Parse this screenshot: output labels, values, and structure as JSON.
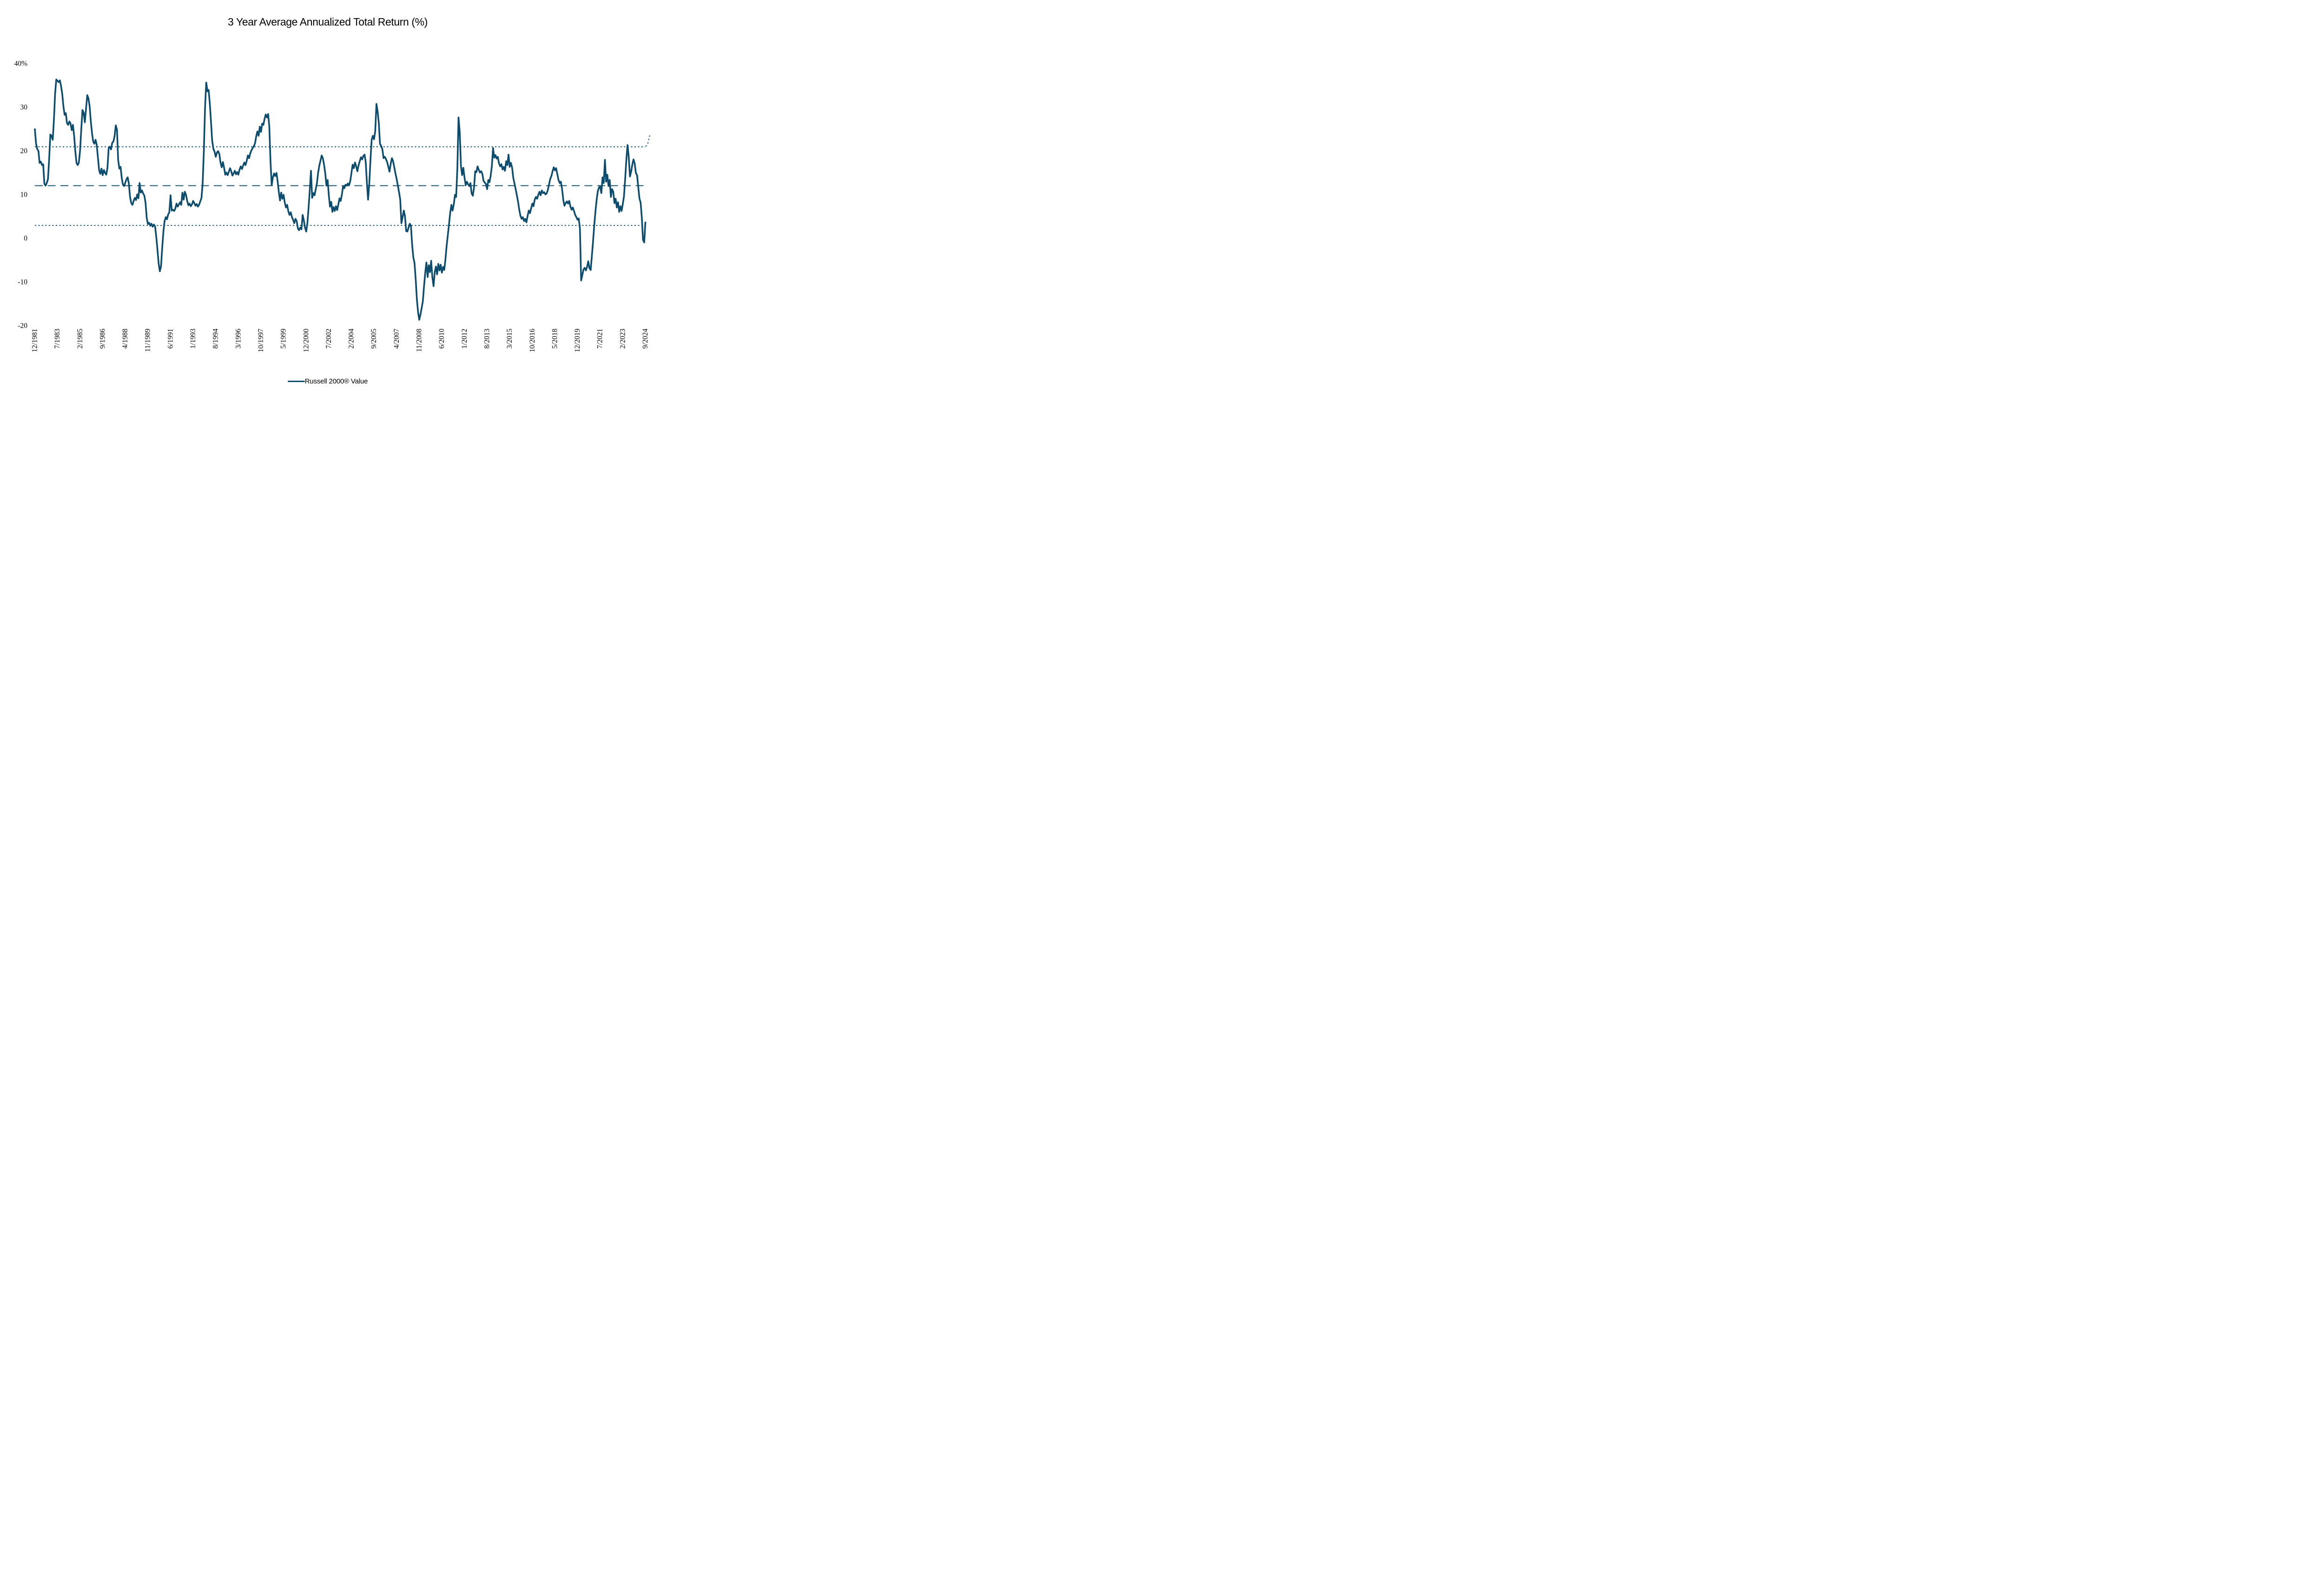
{
  "title": "3 Year Average Annualized Total Return (%)",
  "legend": {
    "label": "Russell 2000® Value"
  },
  "colors": {
    "line": "#0E4C6E",
    "text": "#000000",
    "background": "#FFFFFF"
  },
  "chart_data": {
    "type": "line",
    "title": "3 Year Average Annualized Total Return (%)",
    "xlabel": "",
    "ylabel": "",
    "ylim": [
      -20,
      40
    ],
    "grid": "off",
    "legend_position": "bottom-center",
    "y_ticks": [
      "40%",
      "30",
      "20",
      "10",
      "0",
      "-10",
      "-20"
    ],
    "y_tick_values": [
      40,
      30,
      20,
      10,
      0,
      -10,
      -20
    ],
    "x_tick_labels": [
      "12/1981",
      "7/1983",
      "2/1985",
      "9/1986",
      "4/1988",
      "11/1989",
      "6/1991",
      "1/1993",
      "8/1994",
      "3/1996",
      "10/1997",
      "5/1999",
      "12/2000",
      "7/2002",
      "2/2004",
      "9/2005",
      "4/2007",
      "11/2008",
      "6/2010",
      "1/2012",
      "8/2013",
      "3/2015",
      "10/2016",
      "5/2018",
      "12/2019",
      "7/2021",
      "2/2023",
      "9/2024"
    ],
    "x_tick_step_months": 19,
    "reference_lines": {
      "average": 12.0,
      "plus_one_std": 20.9,
      "minus_one_std": 2.9
    },
    "top_dotted_end_upturn": [
      [
        513.4,
        21.0
      ],
      [
        514.6,
        21.3
      ],
      [
        515.5,
        22.1
      ],
      [
        516.3,
        23.0
      ],
      [
        516.9,
        23.8
      ]
    ],
    "series": [
      {
        "name": "Russell 2000® Value",
        "start": "12/1981",
        "end": "9/2024",
        "frequency": "monthly",
        "values": [
          24.9,
          21.6,
          20.4,
          19.9,
          17.2,
          17.5,
          16.7,
          16.9,
          12.4,
          12.0,
          12.6,
          13.5,
          18.0,
          23.7,
          23.4,
          22.5,
          27.0,
          33.0,
          36.3,
          36.0,
          35.7,
          36.1,
          34.8,
          33.0,
          30.1,
          28.2,
          28.6,
          26.3,
          25.9,
          26.7,
          26.2,
          24.7,
          25.9,
          23.4,
          19.8,
          17.2,
          16.7,
          17.3,
          20.1,
          25.0,
          29.3,
          28.7,
          26.5,
          29.6,
          32.7,
          32.0,
          30.2,
          26.8,
          24.1,
          22.1,
          21.6,
          22.5,
          21.3,
          18.4,
          15.5,
          14.7,
          15.9,
          14.4,
          15.6,
          14.9,
          14.5,
          16.1,
          20.6,
          20.9,
          20.3,
          21.8,
          22.1,
          23.4,
          25.8,
          24.8,
          17.9,
          15.9,
          16.3,
          13.8,
          12.2,
          11.9,
          12.7,
          13.5,
          13.9,
          12.4,
          9.4,
          8.0,
          7.6,
          8.5,
          9.2,
          8.7,
          10.0,
          9.1,
          12.6,
          10.4,
          10.9,
          10.2,
          9.7,
          8.1,
          4.6,
          3.2,
          3.5,
          2.8,
          3.3,
          2.6,
          3.1,
          2.7,
          0.3,
          -2.6,
          -5.8,
          -7.6,
          -6.5,
          -2.2,
          1.4,
          3.9,
          4.8,
          4.3,
          5.4,
          5.9,
          9.8,
          6.3,
          6.5,
          6.2,
          6.7,
          7.9,
          7.2,
          7.7,
          8.2,
          7.6,
          10.4,
          8.8,
          10.6,
          9.9,
          8.5,
          7.5,
          7.9,
          7.3,
          7.7,
          8.5,
          8.0,
          7.4,
          7.8,
          7.2,
          7.6,
          8.4,
          9.2,
          12.5,
          20.0,
          30.0,
          35.6,
          33.6,
          33.9,
          30.8,
          26.5,
          22.3,
          20.4,
          19.8,
          18.6,
          19.6,
          19.9,
          19.2,
          17.3,
          16.2,
          17.4,
          16.1,
          14.5,
          15.0,
          14.4,
          15.2,
          16.0,
          15.3,
          14.3,
          14.8,
          15.4,
          14.6,
          15.1,
          14.5,
          15.7,
          16.4,
          15.8,
          16.6,
          17.3,
          16.7,
          17.7,
          18.9,
          18.3,
          19.4,
          20.1,
          20.6,
          21.0,
          21.7,
          23.3,
          24.4,
          23.4,
          25.5,
          24.3,
          26.2,
          25.9,
          27.3,
          28.3,
          27.6,
          28.4,
          25.5,
          17.5,
          12.1,
          13.9,
          14.8,
          14.2,
          14.9,
          13.0,
          10.5,
          8.6,
          10.4,
          9.0,
          9.9,
          8.1,
          7.0,
          7.6,
          6.1,
          5.3,
          5.9,
          4.8,
          4.2,
          3.4,
          4.4,
          3.9,
          2.2,
          1.8,
          2.4,
          2.0,
          5.3,
          4.1,
          2.4,
          1.5,
          3.5,
          7.0,
          11.0,
          15.4,
          9.2,
          10.3,
          9.8,
          11.2,
          12.5,
          14.9,
          16.6,
          17.7,
          18.9,
          18.3,
          16.8,
          14.8,
          12.0,
          13.3,
          9.8,
          7.2,
          8.3,
          6.0,
          7.1,
          6.2,
          7.3,
          6.4,
          7.7,
          9.1,
          8.5,
          10.0,
          11.9,
          11.4,
          12.2,
          12.0,
          12.5,
          12.1,
          13.0,
          14.9,
          16.8,
          16.0,
          17.3,
          16.4,
          15.3,
          16.7,
          17.6,
          18.5,
          18.0,
          18.8,
          19.1,
          17.4,
          12.6,
          8.8,
          12.5,
          18.0,
          22.5,
          23.4,
          22.6,
          24.5,
          30.7,
          29.0,
          26.3,
          21.6,
          21.1,
          20.3,
          18.3,
          18.6,
          18.1,
          17.4,
          16.3,
          15.2,
          17.0,
          18.3,
          17.6,
          16.2,
          14.8,
          13.5,
          12.0,
          10.5,
          8.8,
          3.4,
          4.8,
          6.3,
          5.0,
          1.6,
          1.5,
          2.4,
          3.3,
          2.8,
          -1.5,
          -4.4,
          -5.7,
          -9.5,
          -14.0,
          -17.0,
          -18.7,
          -17.5,
          -16.0,
          -14.5,
          -11.0,
          -8.0,
          -5.6,
          -8.9,
          -6.2,
          -7.8,
          -5.2,
          -9.0,
          -11.0,
          -7.8,
          -6.5,
          -8.3,
          -5.9,
          -7.4,
          -6.1,
          -7.9,
          -6.6,
          -7.3,
          -4.8,
          -1.8,
          0.7,
          3.2,
          5.8,
          7.6,
          6.3,
          7.7,
          9.9,
          9.4,
          16.0,
          27.6,
          24.2,
          16.5,
          14.4,
          16.1,
          13.9,
          12.1,
          12.9,
          12.3,
          11.9,
          12.6,
          10.2,
          9.7,
          11.5,
          15.3,
          15.1,
          16.4,
          15.6,
          15.0,
          15.3,
          14.7,
          13.1,
          12.7,
          12.4,
          11.2,
          13.3,
          12.8,
          14.3,
          16.5,
          20.6,
          18.4,
          19.0,
          18.2,
          18.6,
          17.1,
          16.4,
          16.9,
          15.7,
          16.3,
          15.4,
          17.6,
          16.7,
          19.1,
          16.3,
          17.2,
          16.1,
          13.8,
          12.5,
          11.2,
          9.8,
          8.3,
          6.5,
          5.1,
          4.4,
          4.8,
          3.9,
          4.4,
          3.6,
          5.0,
          6.3,
          5.7,
          6.8,
          7.9,
          7.3,
          8.8,
          9.4,
          9.0,
          9.9,
          10.6,
          9.8,
          10.9,
          10.3,
          10.5,
          10.0,
          10.2,
          11.0,
          12.2,
          13.5,
          14.2,
          15.3,
          16.2,
          15.5,
          16.0,
          14.6,
          13.3,
          12.6,
          12.9,
          11.2,
          8.7,
          7.4,
          8.0,
          8.4,
          7.9,
          8.5,
          7.2,
          6.5,
          7.0,
          6.2,
          5.3,
          4.8,
          4.2,
          4.5,
          2.2,
          -9.7,
          -8.5,
          -7.2,
          -6.8,
          -7.4,
          -6.6,
          -5.3,
          -6.9,
          -7.3,
          -4.2,
          -0.8,
          2.8,
          6.0,
          8.7,
          10.7,
          11.6,
          11.8,
          10.3,
          13.9,
          12.6,
          17.9,
          12.9,
          14.5,
          11.9,
          13.3,
          9.4,
          11.2,
          10.6,
          8.0,
          9.0,
          7.0,
          8.2,
          6.0,
          7.3,
          6.2,
          7.8,
          9.5,
          13.5,
          18.0,
          21.3,
          18.6,
          14.1,
          15.2,
          16.8,
          18.0,
          17.1,
          14.9,
          14.4,
          11.7,
          9.1,
          8.1,
          4.6,
          -0.4,
          -1.0,
          3.6
        ]
      }
    ]
  }
}
